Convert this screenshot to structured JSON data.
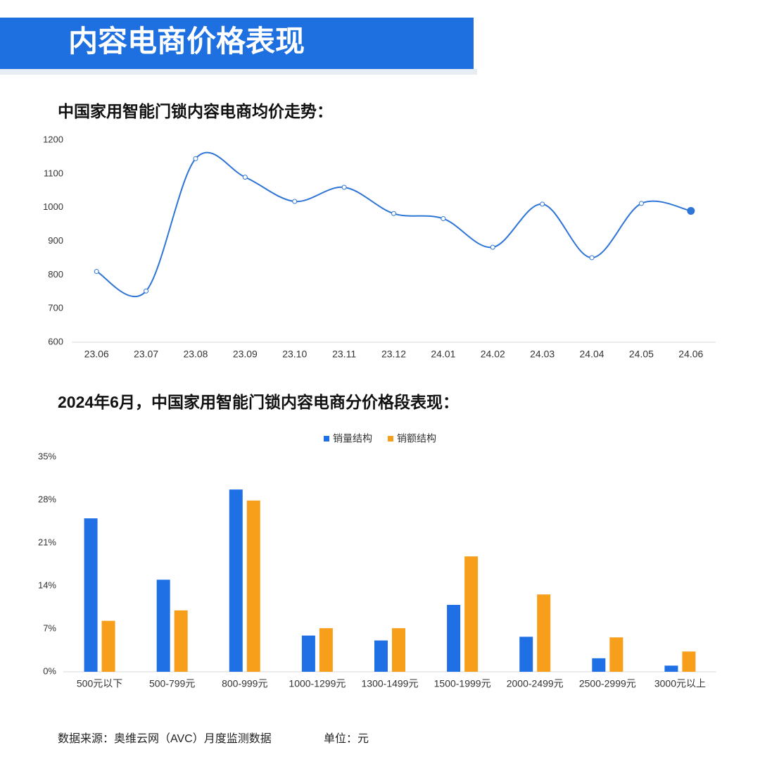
{
  "header": {
    "title": "内容电商价格表现"
  },
  "chart_data": [
    {
      "type": "line",
      "title": "中国家用智能门锁内容电商均价走势：",
      "categories": [
        "23.06",
        "23.07",
        "23.08",
        "23.09",
        "23.10",
        "23.11",
        "23.12",
        "24.01",
        "24.02",
        "24.03",
        "24.04",
        "24.05",
        "24.06"
      ],
      "values": [
        810,
        752,
        1145,
        1090,
        1018,
        1060,
        982,
        967,
        882,
        1010,
        851,
        1012,
        990
      ],
      "color": "#2e75d6",
      "ylim": [
        600,
        1200
      ],
      "yticks": [
        600,
        700,
        800,
        900,
        1000,
        1100,
        1200
      ],
      "grid": false
    },
    {
      "type": "bar",
      "title": "2024年6月，中国家用智能门锁内容电商分价格段表现：",
      "categories": [
        "500元以下",
        "500-799元",
        "800-999元",
        "1000-1299元",
        "1300-1499元",
        "1500-1999元",
        "2000-2499元",
        "2500-2999元",
        "3000元以上"
      ],
      "series": [
        {
          "name": "销量结构",
          "color": "#1f6fe5",
          "values": [
            25.0,
            15.0,
            29.7,
            5.9,
            5.1,
            10.9,
            5.7,
            2.2,
            1.0
          ]
        },
        {
          "name": "销额结构",
          "color": "#f79f1a",
          "values": [
            8.3,
            10.0,
            27.9,
            7.1,
            7.1,
            18.8,
            12.6,
            5.6,
            3.3
          ]
        }
      ],
      "ylim": [
        0,
        35
      ],
      "yticks": [
        {
          "value": 0,
          "label": "0%"
        },
        {
          "value": 7,
          "label": "7%"
        },
        {
          "value": 14,
          "label": "14%"
        },
        {
          "value": 21,
          "label": "21%"
        },
        {
          "value": 28,
          "label": "28%"
        },
        {
          "value": 35,
          "label": "35%"
        }
      ],
      "grid": false,
      "legend": "top"
    }
  ],
  "footer": {
    "source": "数据来源：奥维云网（AVC）月度监测数据",
    "unit": "单位：元"
  }
}
